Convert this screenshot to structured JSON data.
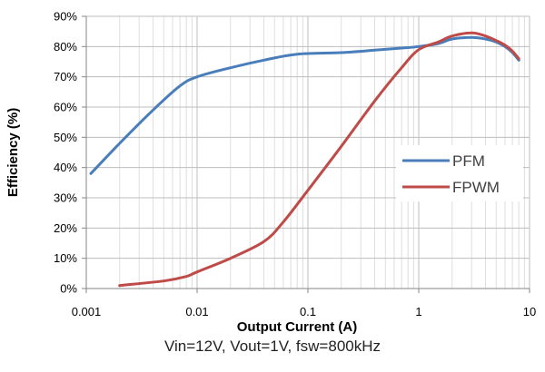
{
  "chart_data": {
    "type": "line",
    "title": "",
    "xlabel": "Output Current (A)",
    "ylabel": "Efficiency (%)",
    "xscale": "log",
    "xlim": [
      0.001,
      10
    ],
    "ylim": [
      0,
      90
    ],
    "x_tick_labels": [
      "0.001",
      "0.01",
      "0.1",
      "1",
      "10"
    ],
    "y_tick_labels": [
      "0%",
      "10%",
      "20%",
      "30%",
      "40%",
      "50%",
      "60%",
      "70%",
      "80%",
      "90%"
    ],
    "grid": true,
    "legend_position": "right",
    "series": [
      {
        "name": "PFM",
        "color": "#4a7ebb",
        "x": [
          0.0011,
          0.002,
          0.004,
          0.007,
          0.01,
          0.02,
          0.04,
          0.08,
          0.2,
          0.4,
          0.7,
          1.0,
          1.5,
          2.0,
          3.0,
          4.0,
          5.0,
          6.0,
          7.0,
          8.0
        ],
        "y": [
          38,
          48,
          59,
          67,
          70,
          73,
          75.5,
          77.5,
          78,
          78.8,
          79.5,
          80,
          81,
          82.5,
          83,
          82.5,
          81.5,
          80,
          78,
          75.5
        ]
      },
      {
        "name": "FPWM",
        "color": "#be4b48",
        "x": [
          0.002,
          0.005,
          0.008,
          0.01,
          0.02,
          0.04,
          0.06,
          0.1,
          0.2,
          0.4,
          0.7,
          1.0,
          1.5,
          2.0,
          3.0,
          4.0,
          5.0,
          6.0,
          7.0,
          8.0
        ],
        "y": [
          1,
          2.5,
          4,
          5.5,
          10,
          15.5,
          22,
          32.5,
          47,
          62,
          73,
          79,
          81.5,
          83.5,
          84.5,
          83.5,
          82,
          80.5,
          78.5,
          76
        ]
      }
    ]
  },
  "caption": "Vin=12V, Vout=1V, fsw=800kHz"
}
